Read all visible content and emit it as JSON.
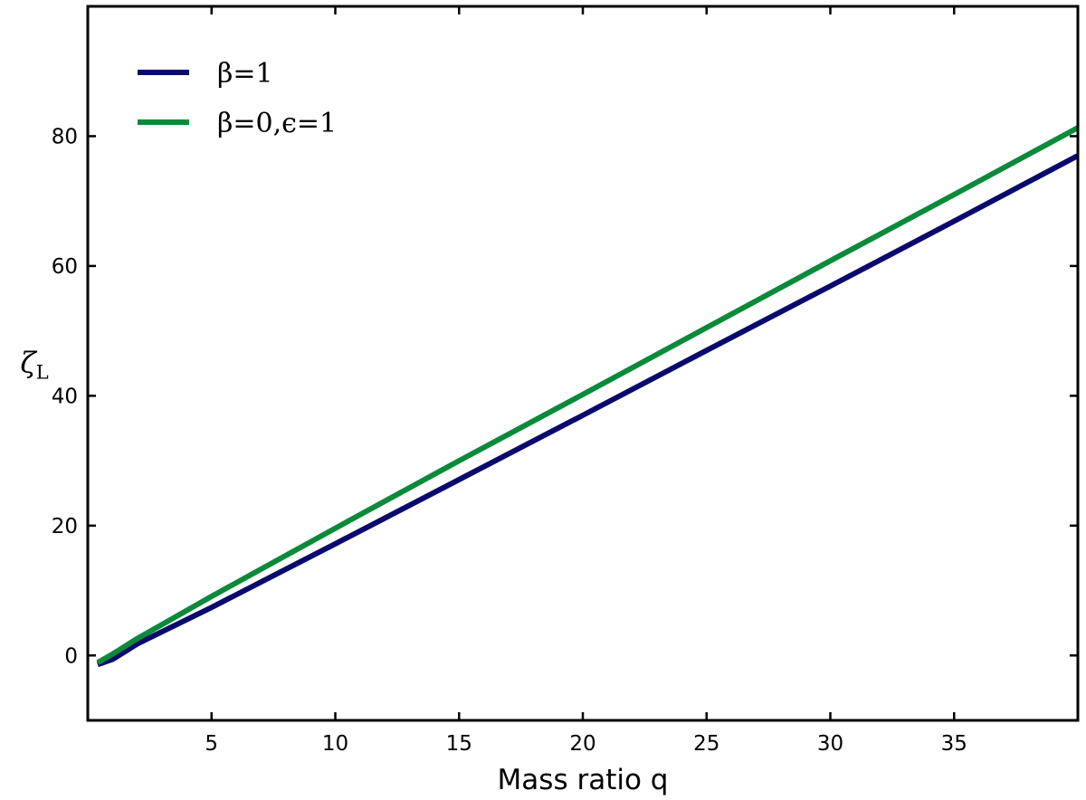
{
  "chart_data": {
    "type": "line",
    "title": "",
    "xlabel": "Mass ratio q",
    "ylabel": "ζL",
    "ylabel_main": "ζ",
    "ylabel_sub": "L",
    "xlim": [
      0,
      40
    ],
    "ylim": [
      -10,
      100
    ],
    "xticks": [
      5,
      10,
      15,
      20,
      25,
      30,
      35
    ],
    "yticks": [
      0,
      20,
      40,
      60,
      80
    ],
    "grid": false,
    "legend_position": "top-left",
    "series": [
      {
        "name": "β=1",
        "name_math": "β=1",
        "color": "#0a0a6e",
        "x": [
          0.4,
          1,
          2,
          5,
          10,
          15,
          20,
          25,
          30,
          35,
          40
        ],
        "y": [
          -1.4,
          -0.6,
          1.8,
          7.4,
          17.2,
          27.1,
          37.0,
          47.0,
          56.9,
          66.9,
          77.0
        ]
      },
      {
        "name": "β=0, ϵ=1",
        "name_math": "β=0,ϵ=1",
        "color": "#0a8a3a",
        "x": [
          0.4,
          1,
          2,
          5,
          10,
          15,
          20,
          25,
          30,
          35,
          40
        ],
        "y": [
          -1.1,
          0.2,
          2.6,
          9.1,
          19.6,
          30.0,
          40.2,
          50.5,
          60.8,
          71.0,
          81.3
        ]
      }
    ]
  }
}
